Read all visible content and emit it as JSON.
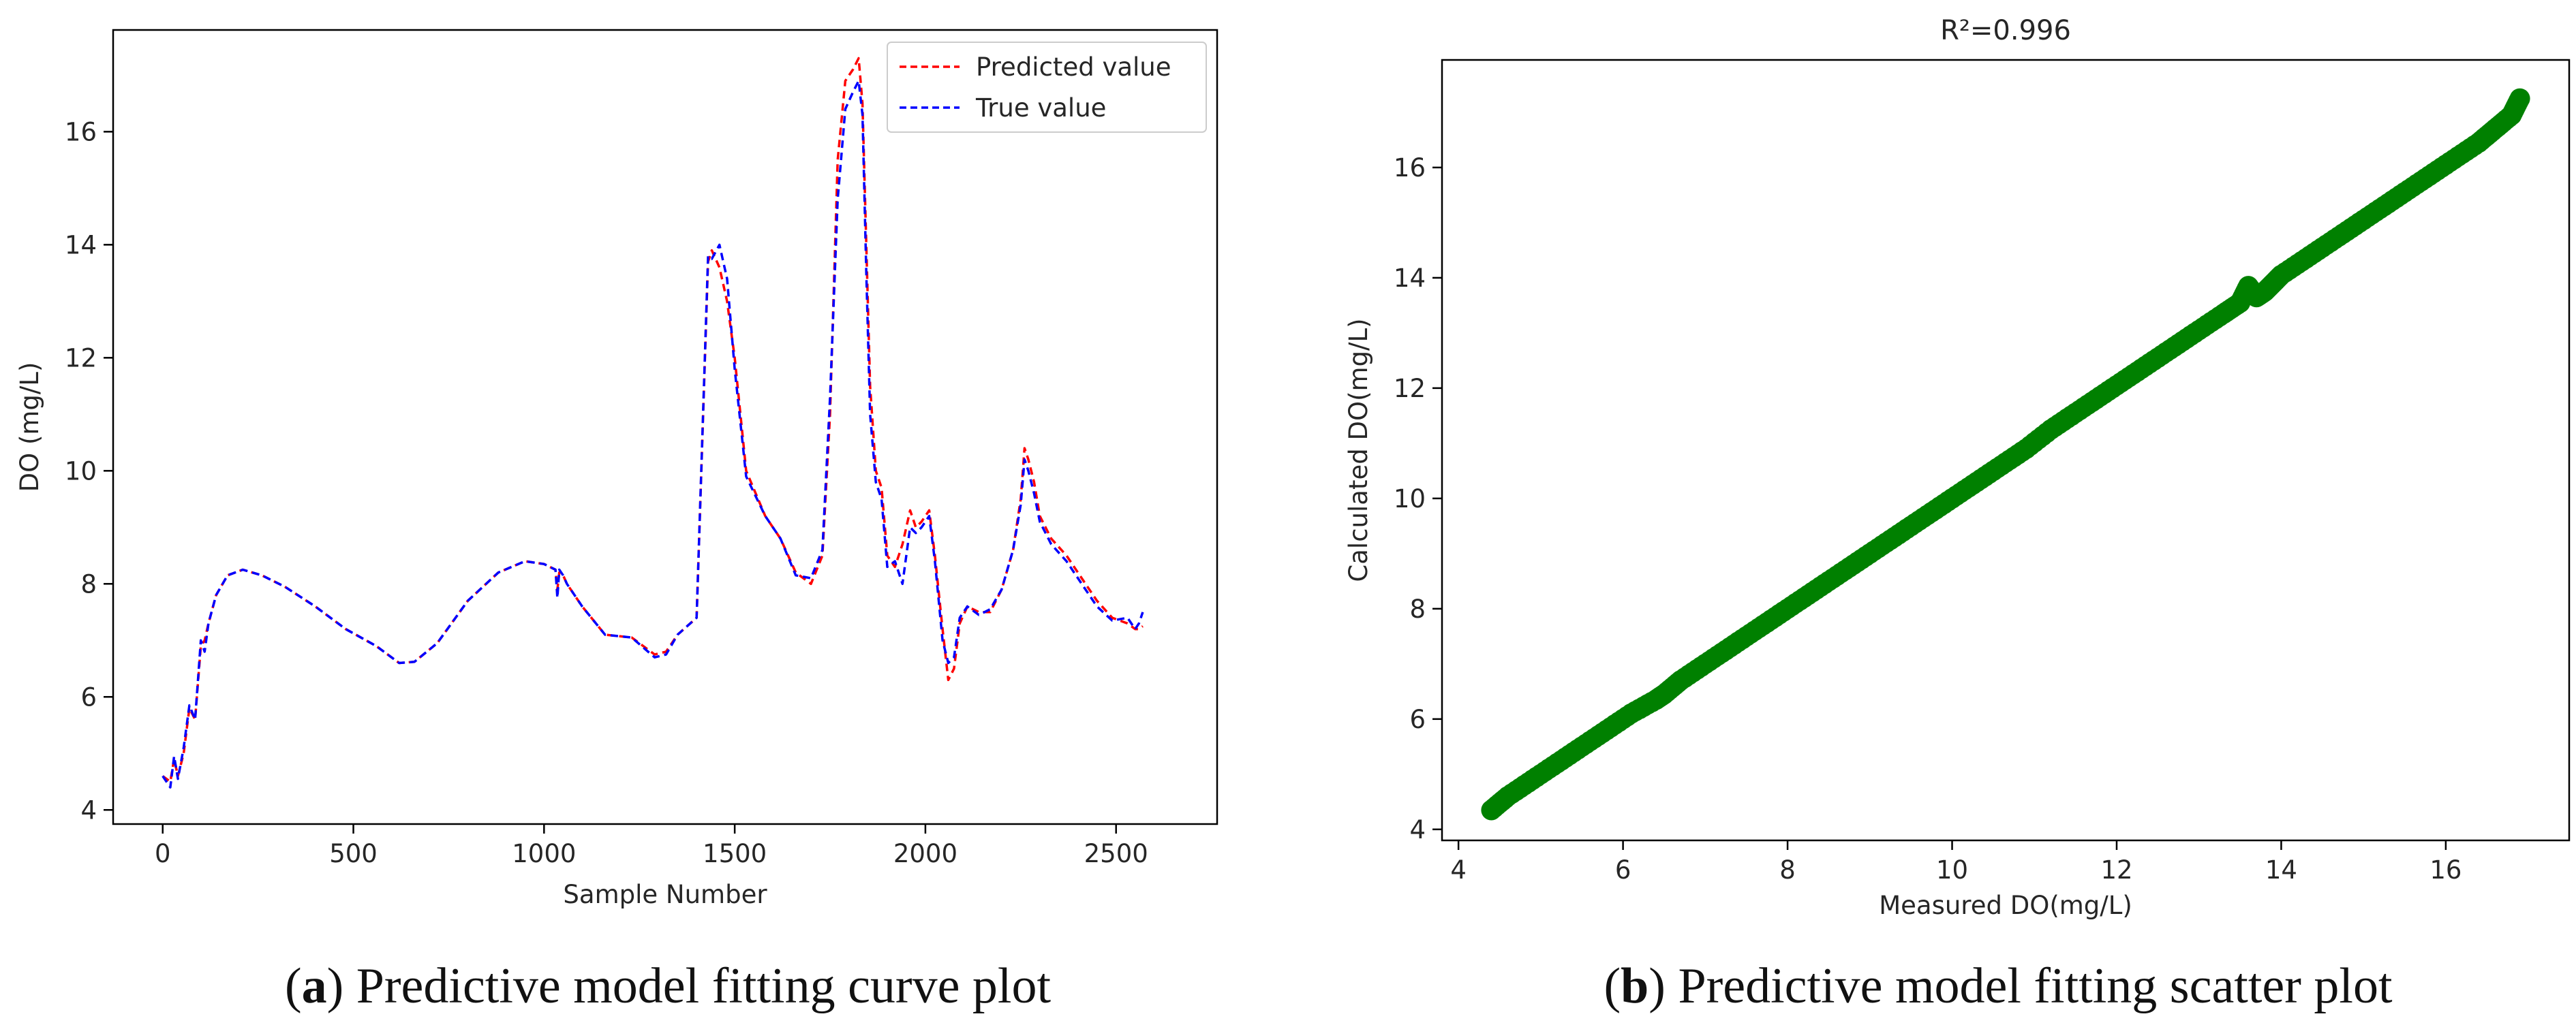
{
  "chart_data": [
    {
      "panel": "a",
      "type": "line",
      "caption": {
        "letter": "a",
        "text": ") Predictive model fitting curve plot"
      },
      "xlabel": "Sample Number",
      "ylabel": "DO (mg/L)",
      "xlim": [
        -130,
        2765
      ],
      "ylim": [
        3.75,
        17.8
      ],
      "xticks": [
        0,
        500,
        1000,
        1500,
        2000,
        2500
      ],
      "yticks": [
        4,
        6,
        8,
        10,
        12,
        14,
        16
      ],
      "grid": false,
      "legend_position": "top-right",
      "series": [
        {
          "name": "Predicted value",
          "color": "#ff0000",
          "style": "dashed",
          "x": [
            0,
            20,
            30,
            40,
            55,
            70,
            85,
            100,
            110,
            120,
            140,
            170,
            210,
            260,
            320,
            400,
            480,
            560,
            620,
            660,
            720,
            800,
            880,
            950,
            1000,
            1030,
            1035,
            1040,
            1050,
            1060,
            1100,
            1160,
            1230,
            1290,
            1320,
            1350,
            1400,
            1430,
            1440,
            1460,
            1480,
            1500,
            1530,
            1580,
            1620,
            1660,
            1700,
            1730,
            1750,
            1770,
            1790,
            1810,
            1825,
            1835,
            1845,
            1855,
            1870,
            1885,
            1900,
            1920,
            1940,
            1960,
            1975,
            1990,
            2010,
            2025,
            2045,
            2060,
            2075,
            2090,
            2110,
            2140,
            2170,
            2200,
            2230,
            2250,
            2260,
            2270,
            2285,
            2300,
            2330,
            2370,
            2410,
            2450,
            2490,
            2530,
            2550,
            2560,
            2570
          ],
          "values": [
            4.6,
            4.5,
            4.9,
            4.6,
            5.0,
            5.8,
            5.6,
            6.9,
            7.0,
            7.3,
            7.8,
            8.15,
            8.25,
            8.15,
            7.95,
            7.6,
            7.2,
            6.9,
            6.6,
            6.62,
            6.95,
            7.7,
            8.2,
            8.4,
            8.35,
            8.25,
            7.9,
            8.2,
            8.15,
            8.0,
            7.6,
            7.1,
            7.05,
            6.75,
            6.8,
            7.1,
            7.4,
            13.7,
            13.9,
            13.6,
            13.0,
            12.0,
            10.0,
            9.2,
            8.8,
            8.2,
            8.0,
            8.5,
            11.0,
            15.5,
            16.9,
            17.1,
            17.3,
            16.5,
            14.0,
            11.5,
            10.0,
            9.7,
            8.5,
            8.3,
            8.7,
            9.3,
            9.0,
            9.1,
            9.3,
            8.5,
            7.2,
            6.3,
            6.5,
            7.3,
            7.6,
            7.5,
            7.5,
            7.9,
            8.6,
            9.5,
            10.4,
            10.2,
            9.8,
            9.2,
            8.8,
            8.5,
            8.1,
            7.7,
            7.4,
            7.3,
            7.2,
            7.2,
            7.25
          ]
        },
        {
          "name": "True value",
          "color": "#0000ff",
          "style": "dashed",
          "x": [
            0,
            20,
            30,
            40,
            55,
            70,
            85,
            100,
            110,
            120,
            140,
            170,
            210,
            260,
            320,
            400,
            480,
            560,
            620,
            660,
            720,
            800,
            880,
            950,
            1000,
            1030,
            1035,
            1040,
            1050,
            1060,
            1100,
            1160,
            1230,
            1290,
            1320,
            1350,
            1400,
            1430,
            1440,
            1460,
            1480,
            1500,
            1530,
            1580,
            1620,
            1660,
            1700,
            1730,
            1750,
            1770,
            1790,
            1810,
            1825,
            1835,
            1845,
            1855,
            1870,
            1885,
            1900,
            1920,
            1940,
            1960,
            1975,
            1990,
            2010,
            2025,
            2045,
            2060,
            2075,
            2090,
            2110,
            2140,
            2170,
            2200,
            2230,
            2250,
            2260,
            2270,
            2285,
            2300,
            2330,
            2370,
            2410,
            2450,
            2490,
            2530,
            2550,
            2560,
            2570
          ],
          "values": [
            4.6,
            4.4,
            4.95,
            4.55,
            5.1,
            5.85,
            5.6,
            7.0,
            6.8,
            7.3,
            7.8,
            8.15,
            8.25,
            8.15,
            7.95,
            7.6,
            7.2,
            6.9,
            6.6,
            6.62,
            6.95,
            7.7,
            8.2,
            8.4,
            8.35,
            8.25,
            7.75,
            8.25,
            8.15,
            8.0,
            7.6,
            7.1,
            7.05,
            6.7,
            6.75,
            7.1,
            7.4,
            13.8,
            13.75,
            14.0,
            13.4,
            11.8,
            9.9,
            9.2,
            8.8,
            8.15,
            8.1,
            8.6,
            11.3,
            14.8,
            16.4,
            16.7,
            16.9,
            16.3,
            13.5,
            11.0,
            9.8,
            9.5,
            8.3,
            8.4,
            8.0,
            9.0,
            8.9,
            9.0,
            9.2,
            8.4,
            7.0,
            6.6,
            6.7,
            7.4,
            7.6,
            7.45,
            7.55,
            7.9,
            8.6,
            9.4,
            10.2,
            10.0,
            9.6,
            9.1,
            8.7,
            8.4,
            8.0,
            7.6,
            7.35,
            7.4,
            7.2,
            7.3,
            7.5
          ]
        }
      ]
    },
    {
      "panel": "b",
      "type": "scatter",
      "title": "R²=0.996",
      "caption": {
        "letter": "b",
        "text": ") Predictive model fitting scatter plot"
      },
      "xlabel": "Measured DO(mg/L)",
      "ylabel": "Calculated DO(mg/L)",
      "xlim": [
        3.8,
        17.5
      ],
      "ylim": [
        3.8,
        17.95
      ],
      "xticks": [
        4,
        6,
        8,
        10,
        12,
        14,
        16
      ],
      "yticks": [
        4,
        6,
        8,
        10,
        12,
        14,
        16
      ],
      "grid": false,
      "marker_color": "#008000",
      "points": {
        "x": [
          4.4,
          4.6,
          4.9,
          5.2,
          5.5,
          5.8,
          6.1,
          6.4,
          6.5,
          6.7,
          7.0,
          7.3,
          7.6,
          7.9,
          8.2,
          8.5,
          8.8,
          9.1,
          9.4,
          9.7,
          10.0,
          10.3,
          10.6,
          10.9,
          11.2,
          11.5,
          11.8,
          12.1,
          12.4,
          12.7,
          13.0,
          13.3,
          13.5,
          13.6,
          13.7,
          13.8,
          13.9,
          14.0,
          14.3,
          14.6,
          14.9,
          15.2,
          15.5,
          15.8,
          16.1,
          16.4,
          16.6,
          16.8,
          16.9
        ],
        "y": [
          4.35,
          4.6,
          4.9,
          5.2,
          5.5,
          5.8,
          6.1,
          6.35,
          6.45,
          6.7,
          7.0,
          7.3,
          7.6,
          7.9,
          8.2,
          8.5,
          8.8,
          9.1,
          9.4,
          9.7,
          10.0,
          10.3,
          10.6,
          10.9,
          11.25,
          11.55,
          11.85,
          12.15,
          12.45,
          12.75,
          13.05,
          13.35,
          13.55,
          13.85,
          13.65,
          13.75,
          13.9,
          14.05,
          14.35,
          14.65,
          14.95,
          15.25,
          15.55,
          15.85,
          16.15,
          16.45,
          16.7,
          16.95,
          17.25
        ]
      }
    }
  ]
}
